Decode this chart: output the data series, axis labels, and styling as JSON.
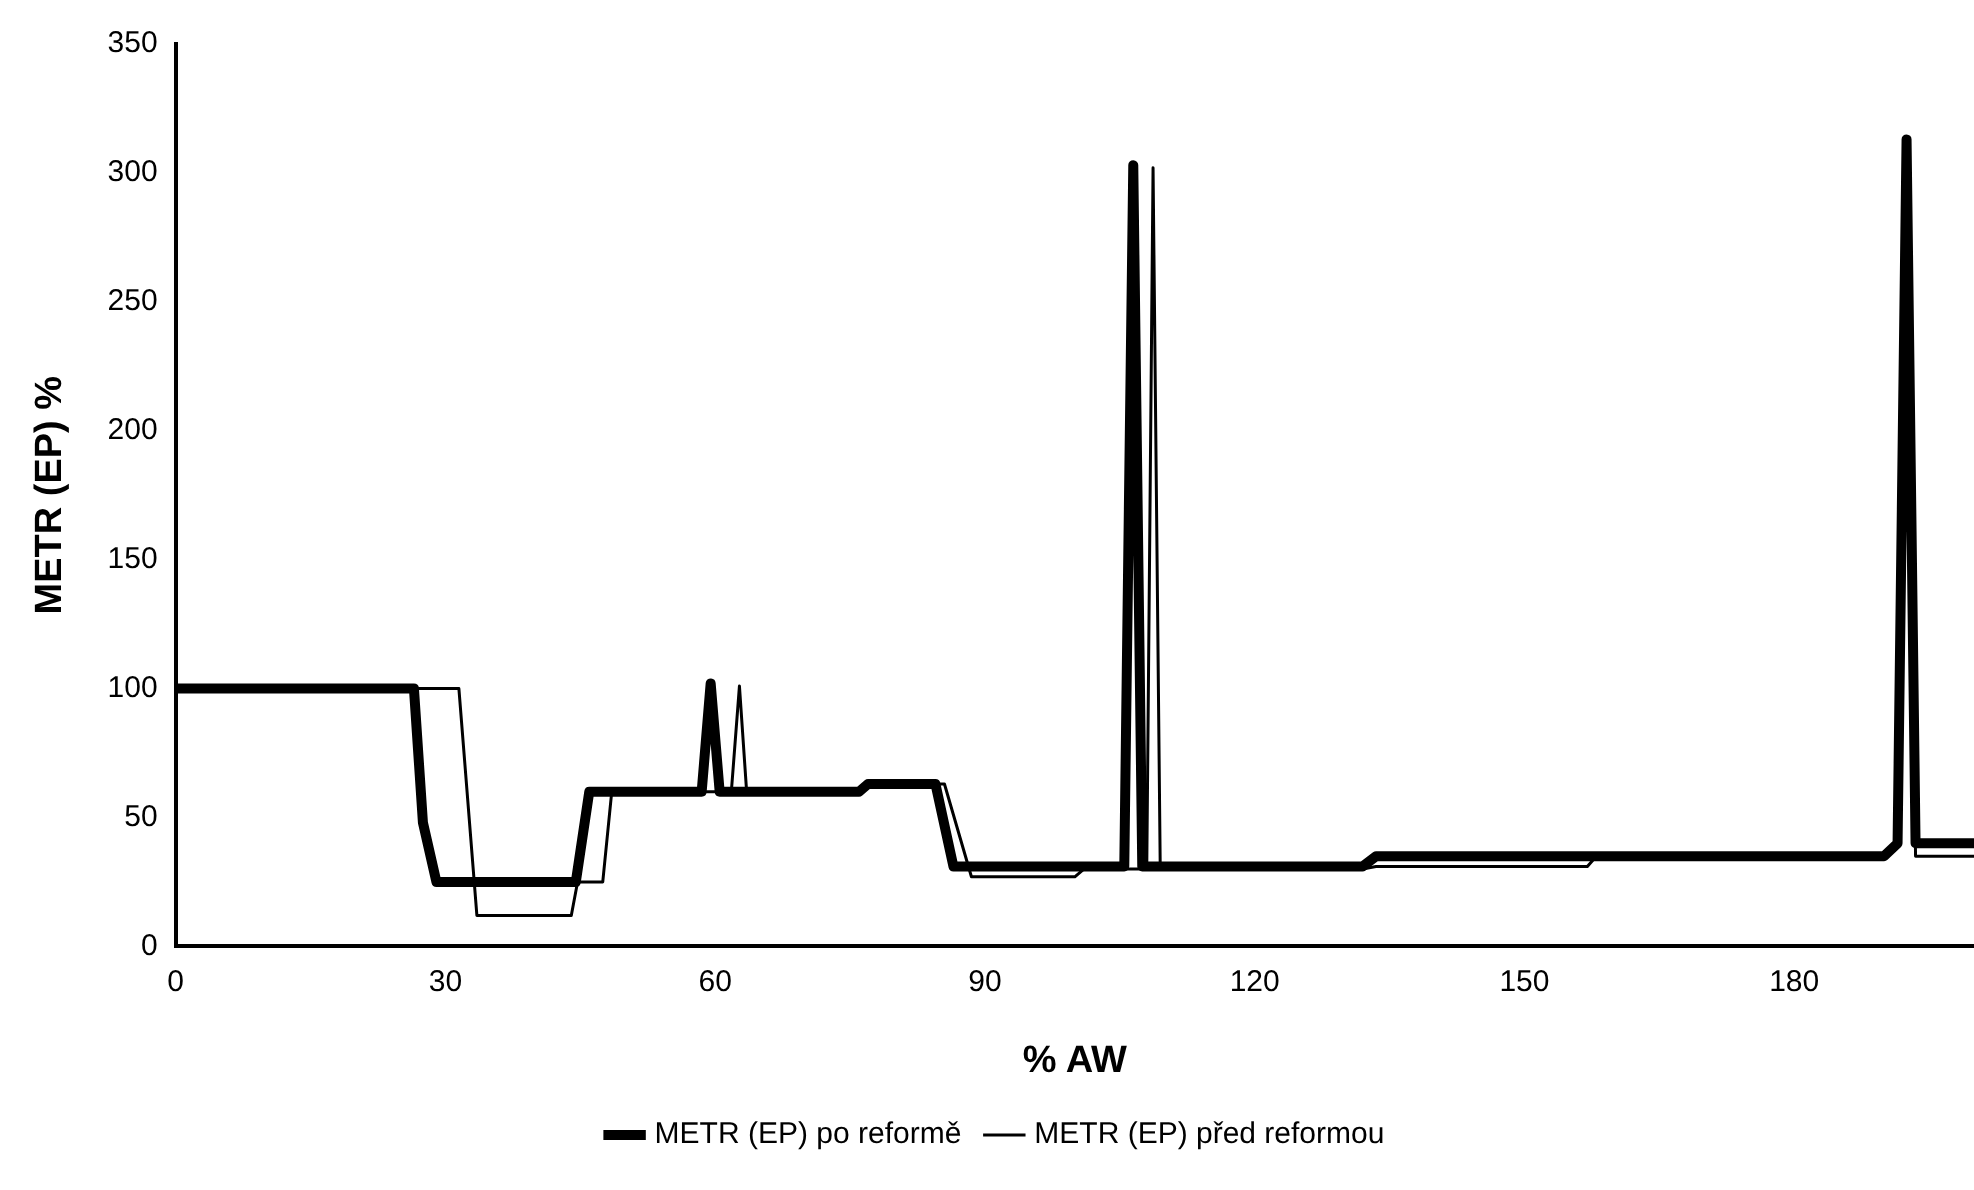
{
  "chart_data": {
    "type": "line",
    "xlabel": "% AW",
    "ylabel": "METR (EP) %",
    "xlim": [
      0,
      200
    ],
    "xticks": [
      0,
      30,
      60,
      90,
      120,
      150,
      180
    ],
    "ylim": [
      0,
      350
    ],
    "yticks": [
      0,
      50,
      100,
      150,
      200,
      250,
      300,
      350
    ],
    "grid": false,
    "legend": "bottom",
    "marker": "none",
    "line_style": "solid",
    "series": [
      {
        "name": "METR (EP) po reformě",
        "color": "#000000",
        "x": [
          0,
          26.5,
          27.5,
          29,
          44.5,
          46,
          58.5,
          59.5,
          60.5,
          76,
          77,
          84.5,
          86.5,
          105.5,
          106.5,
          107.5,
          132,
          133.5,
          190,
          191.5,
          192.5,
          193.5,
          200
        ],
        "values": [
          100,
          100,
          48,
          25,
          25,
          60,
          60,
          102,
          60,
          60,
          63,
          63,
          31,
          31,
          303,
          31,
          31,
          35,
          35,
          40,
          313,
          40,
          40
        ]
      },
      {
        "name": "METR (EP) před reformou",
        "color": "#000000",
        "x": [
          0,
          31.5,
          33.5,
          44,
          44.7,
          47.5,
          48.5,
          61.8,
          62.7,
          63.5,
          76,
          77,
          85.5,
          88.5,
          100,
          101,
          108,
          108.7,
          109.5,
          132,
          133.5,
          157,
          158,
          190,
          191.5,
          192.5,
          193.5,
          200
        ],
        "values": [
          100,
          100,
          12,
          12,
          25,
          25,
          60,
          60,
          101,
          60,
          60,
          63,
          63,
          27,
          27,
          30,
          30,
          302,
          30,
          30,
          31,
          31,
          35,
          35,
          40,
          313,
          35,
          35
        ]
      }
    ]
  }
}
